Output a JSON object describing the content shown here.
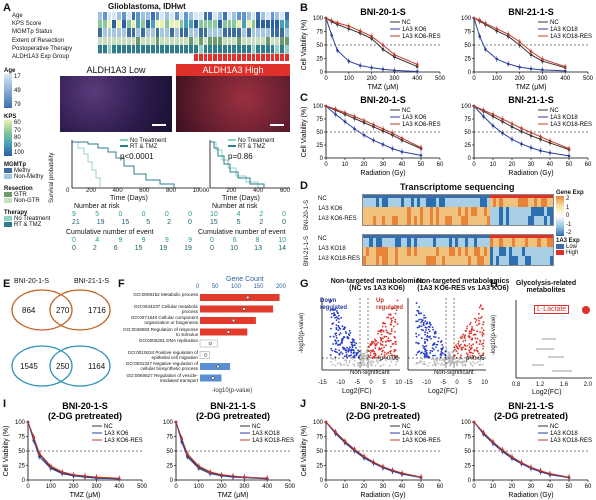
{
  "panels": {
    "A": {
      "label": "A",
      "title": "Glioblastoma, IDHwt",
      "track_labels": [
        "Age",
        "KPS Score",
        "MGMTp Status",
        "Extent of Resection",
        "Postoperative Therapy",
        "ALDH1A3 Exp Group"
      ],
      "legend": {
        "age_title": "Age",
        "age_ticks": [
          "17",
          "49",
          "79"
        ],
        "kps_title": "KPS",
        "kps_ticks": [
          "60",
          "70",
          "80",
          "90",
          "100"
        ],
        "mgmt_title": "MGMTp",
        "mgmt_items": [
          "Methy",
          "Non-Methy"
        ],
        "resection_title": "Resection",
        "resection_items": [
          "GTR",
          "Non-GTR"
        ],
        "therapy_title": "Therapy",
        "therapy_items": [
          "No Treatment",
          "RT & TMZ"
        ],
        "colors": {
          "methy": "#3b6e9e",
          "nonmethy": "#a7c7e0",
          "gtr": "#6b9c6b",
          "nongtr": "#c9e0c0",
          "notreat": "#8fd1c8",
          "rttmz": "#2e7d8f",
          "low": "#ffffff",
          "high": "#e0302a"
        }
      },
      "img_low_label": "ALDH1A3 Low",
      "img_high_label": "ALDH1A3 High",
      "km_left": {
        "legend": [
          "No Treatment",
          "RT & TMZ"
        ],
        "pvalue": "p<0.0001",
        "ylabel": "Survival probability",
        "xlabel": "Time (Days)",
        "xticks": [
          "0",
          "200",
          "400",
          "600",
          "800",
          "1000"
        ],
        "risk_title": "Number at risk",
        "risk_rows": [
          [
            "9",
            "5",
            "0",
            "0",
            "0",
            "0"
          ],
          [
            "21",
            "19",
            "15",
            "5",
            "2",
            "0"
          ]
        ],
        "event_title": "Cumulative number of event",
        "event_rows": [
          [
            "0",
            "4",
            "9",
            "9",
            "9",
            "9"
          ],
          [
            "0",
            "2",
            "6",
            "15",
            "19",
            "19"
          ]
        ]
      },
      "km_right": {
        "legend": [
          "No Treatment",
          "RT & TMZ"
        ],
        "pvalue": "p=0.86",
        "xlabel": "Time (Days)",
        "xticks": [
          "0",
          "200",
          "400",
          "600"
        ],
        "risk_title": "Number at risk",
        "risk_rows": [
          [
            "10",
            "4",
            "2",
            "0"
          ],
          [
            "15",
            "5",
            "2",
            "0"
          ]
        ],
        "event_title": "Cumulative number of event",
        "event_rows": [
          [
            "0",
            "6",
            "8",
            "10"
          ],
          [
            "0",
            "10",
            "13",
            "14"
          ]
        ]
      }
    },
    "B": {
      "label": "B"
    },
    "C": {
      "label": "C"
    },
    "D": {
      "label": "D",
      "title": "Transcriptome sequencing",
      "rows_top": [
        "NC",
        "1A3 KO6",
        "1A3 KO6-RES"
      ],
      "rows_bottom": [
        "NC",
        "1A3 KO18",
        "1A3 KO18-RES"
      ],
      "side_top": "BNI-20-1-S",
      "side_bottom": "BNI-21-1-S",
      "legend_title": "Gene Exp",
      "legend_ticks": [
        "2",
        "1",
        "0",
        "-1",
        "-2"
      ],
      "exp_title": "1A3 Exp",
      "exp_items": [
        "Low",
        "High"
      ]
    },
    "E": {
      "label": "E",
      "venn1": {
        "left": "BNI-20-1-S",
        "right": "BNI-21-1-S",
        "values": [
          "864",
          "270",
          "1716"
        ]
      },
      "venn2": {
        "values": [
          "1545",
          "250",
          "1164"
        ]
      }
    },
    "F": {
      "label": "F",
      "axis_title": "Gene Count",
      "axis_ticks": [
        "0",
        "50",
        "100",
        "150",
        "200"
      ],
      "terms": [
        "GO:0008152 Metabolic process",
        "GO:0044237 Cellular metabolic process",
        "GO:0071840 Cellular component organization or biogenesis",
        "GO:0048583 Regulation of response to stimulus",
        "GO:0006281 DNA replication",
        "GO:0010634 Positive regulation of epithelial cell migration",
        "GO:0031327 Negative regulation of cellular biosynthetic process",
        "GO:0060627 Regulation of vesicle-mediated transport"
      ],
      "bottom_label": "-log10(p-value)"
    },
    "G": {
      "label": "G",
      "left_title": [
        "Non-targeted metabolomics",
        "(NC vs 1A3 KO6)"
      ],
      "right_title": [
        "Non-targeted metabolomics",
        "(1A3 KO6-RES vs 1A3 KO6)"
      ],
      "down": [
        "Down",
        "regulated"
      ],
      "up": [
        "Up",
        "regulated"
      ],
      "p_label": "p=0.05",
      "nonsig": "Non-significant",
      "ylabel": "-log10(p-value)",
      "xlabel": "Log2(FC)",
      "xticks": [
        "-15",
        "-10",
        "-5",
        "0",
        "5",
        "10"
      ],
      "yticks": [
        "0",
        "5",
        "10",
        "15"
      ]
    },
    "H": {
      "label": "H",
      "title": [
        "Glycolysis-related",
        "metabolites"
      ],
      "marker": "L-Lactate",
      "ylabel": "-log10(p-value)",
      "xlabel": "Log2(FC)",
      "xticks": [
        "0.8",
        "1.2",
        "1.6",
        "2.0"
      ]
    },
    "I": {
      "label": "I"
    },
    "J": {
      "label": "J"
    }
  },
  "chart_data": [
    {
      "id": "B1",
      "type": "line",
      "title": "BNI-20-1-S",
      "xlabel": "TMZ (μM)",
      "ylabel": "Cell Viability (%)",
      "xlim": [
        0,
        500
      ],
      "ylim": [
        0,
        100
      ],
      "xticks": [
        "0",
        "100",
        "200",
        "300",
        "400",
        "500"
      ],
      "yticks": [
        "0",
        "25",
        "50",
        "75",
        "100"
      ],
      "x": [
        0,
        25,
        50,
        100,
        150,
        200,
        250,
        300,
        400
      ],
      "series": [
        {
          "name": "NC",
          "values": [
            100,
            93,
            88,
            80,
            72,
            62,
            42,
            28,
            10
          ],
          "color": "#333333"
        },
        {
          "name": "1A3 KO6",
          "values": [
            100,
            68,
            40,
            20,
            12,
            8,
            5,
            3,
            1
          ],
          "color": "#2b3f9e"
        },
        {
          "name": "1A3 KO6-RES",
          "values": [
            100,
            95,
            91,
            85,
            76,
            66,
            50,
            32,
            14
          ],
          "color": "#c0392b"
        }
      ]
    },
    {
      "id": "B2",
      "type": "line",
      "title": "BNI-21-1-S",
      "xlabel": "TMZ (μM)",
      "ylabel": "",
      "xlim": [
        0,
        500
      ],
      "ylim": [
        0,
        100
      ],
      "xticks": [
        "0",
        "100",
        "200",
        "300",
        "400",
        "500"
      ],
      "yticks": [
        "0",
        "25",
        "50",
        "75",
        "100"
      ],
      "x": [
        0,
        25,
        50,
        100,
        150,
        200,
        250,
        300,
        400
      ],
      "series": [
        {
          "name": "NC",
          "values": [
            100,
            94,
            88,
            76,
            66,
            50,
            32,
            20,
            8
          ],
          "color": "#333333"
        },
        {
          "name": "1A3 KO18",
          "values": [
            100,
            66,
            42,
            24,
            15,
            9,
            6,
            4,
            2
          ],
          "color": "#2b3f9e"
        },
        {
          "name": "1A3 KO18-RES",
          "values": [
            100,
            96,
            90,
            80,
            70,
            56,
            38,
            24,
            10
          ],
          "color": "#c0392b"
        }
      ]
    },
    {
      "id": "C1",
      "type": "line",
      "title": "BNI-20-1-S",
      "xlabel": "Radiation (Gy)",
      "ylabel": "Cell Viability (%)",
      "xlim": [
        0,
        60
      ],
      "ylim": [
        0,
        100
      ],
      "xticks": [
        "0",
        "10",
        "20",
        "30",
        "40",
        "50",
        "60"
      ],
      "yticks": [
        "0",
        "25",
        "50",
        "75",
        "100"
      ],
      "x": [
        0,
        5,
        10,
        15,
        20,
        25,
        30,
        35,
        40,
        50
      ],
      "series": [
        {
          "name": "NC",
          "values": [
            100,
            92,
            84,
            76,
            68,
            60,
            52,
            44,
            34,
            18
          ],
          "color": "#333333"
        },
        {
          "name": "1A3 KO6",
          "values": [
            100,
            84,
            70,
            56,
            44,
            34,
            26,
            18,
            12,
            5
          ],
          "color": "#2b3f9e"
        },
        {
          "name": "1A3 KO6-RES",
          "values": [
            100,
            94,
            87,
            80,
            72,
            64,
            56,
            48,
            38,
            20
          ],
          "color": "#c0392b"
        }
      ]
    },
    {
      "id": "C2",
      "type": "line",
      "title": "BNI-21-1-S",
      "xlabel": "Radiation (Gy)",
      "ylabel": "",
      "xlim": [
        0,
        60
      ],
      "ylim": [
        0,
        100
      ],
      "xticks": [
        "0",
        "10",
        "20",
        "30",
        "40",
        "50",
        "60"
      ],
      "yticks": [
        "0",
        "25",
        "50",
        "75",
        "100"
      ],
      "x": [
        0,
        5,
        10,
        15,
        20,
        25,
        30,
        35,
        40,
        50
      ],
      "series": [
        {
          "name": "NC",
          "values": [
            100,
            90,
            80,
            70,
            60,
            51,
            43,
            36,
            29,
            16
          ],
          "color": "#333333"
        },
        {
          "name": "1A3 KO18",
          "values": [
            100,
            80,
            62,
            48,
            36,
            27,
            20,
            14,
            10,
            4
          ],
          "color": "#2b3f9e"
        },
        {
          "name": "1A3 KO18-RES",
          "values": [
            100,
            92,
            84,
            75,
            66,
            57,
            49,
            41,
            33,
            18
          ],
          "color": "#c0392b"
        }
      ]
    },
    {
      "id": "I1",
      "type": "line",
      "title": "BNI-20-1-S",
      "subtitle": "(2-DG pretreated)",
      "xlabel": "TMZ (μM)",
      "ylabel": "Cell Viability (%)",
      "xlim": [
        0,
        500
      ],
      "ylim": [
        0,
        100
      ],
      "xticks": [
        "0",
        "100",
        "200",
        "300",
        "400",
        "500"
      ],
      "yticks": [
        "0",
        "25",
        "50",
        "75",
        "100"
      ],
      "x": [
        0,
        25,
        50,
        100,
        150,
        200,
        250,
        300,
        400
      ],
      "series": [
        {
          "name": "NC",
          "values": [
            100,
            72,
            44,
            22,
            12,
            8,
            6,
            4,
            2
          ],
          "color": "#333333"
        },
        {
          "name": "1A3 KO6",
          "values": [
            100,
            68,
            40,
            20,
            11,
            7,
            5,
            3,
            2
          ],
          "color": "#2b3f9e"
        },
        {
          "name": "1A3 KO6-RES",
          "values": [
            100,
            74,
            46,
            24,
            14,
            9,
            7,
            5,
            3
          ],
          "color": "#c0392b"
        }
      ]
    },
    {
      "id": "I2",
      "type": "line",
      "title": "BNI-21-1-S",
      "subtitle": "(2-DG pretreated)",
      "xlabel": "TMZ (μM)",
      "ylabel": "",
      "xlim": [
        0,
        500
      ],
      "ylim": [
        0,
        100
      ],
      "xticks": [
        "0",
        "100",
        "200",
        "300",
        "400",
        "500"
      ],
      "yticks": [
        "0",
        "25",
        "50",
        "75",
        "100"
      ],
      "x": [
        0,
        25,
        50,
        100,
        150,
        200,
        250,
        300,
        400
      ],
      "series": [
        {
          "name": "NC",
          "values": [
            100,
            70,
            42,
            22,
            13,
            8,
            6,
            5,
            3
          ],
          "color": "#333333"
        },
        {
          "name": "1A3 KO18",
          "values": [
            100,
            66,
            40,
            20,
            11,
            7,
            5,
            4,
            2
          ],
          "color": "#2b3f9e"
        },
        {
          "name": "1A3 KO18-RES",
          "values": [
            100,
            72,
            45,
            24,
            14,
            9,
            7,
            5,
            3
          ],
          "color": "#c0392b"
        }
      ]
    },
    {
      "id": "J1",
      "type": "line",
      "title": "BNI-20-1-S",
      "subtitle": "(2-DG pretreated)",
      "xlabel": "Radiation (Gy)",
      "ylabel": "Cell Viability (%)",
      "xlim": [
        0,
        60
      ],
      "ylim": [
        0,
        100
      ],
      "xticks": [
        "0",
        "10",
        "20",
        "30",
        "40",
        "50",
        "60"
      ],
      "yticks": [
        "0",
        "25",
        "50",
        "75",
        "100"
      ],
      "x": [
        0,
        5,
        10,
        15,
        20,
        25,
        30,
        35,
        40,
        50
      ],
      "series": [
        {
          "name": "NC",
          "values": [
            100,
            82,
            66,
            52,
            40,
            30,
            22,
            16,
            11,
            5
          ],
          "color": "#333333"
        },
        {
          "name": "1A3 KO6",
          "values": [
            100,
            80,
            64,
            50,
            38,
            29,
            21,
            15,
            10,
            4
          ],
          "color": "#2b3f9e"
        },
        {
          "name": "1A3 KO6-RES",
          "values": [
            100,
            83,
            67,
            53,
            41,
            31,
            23,
            17,
            12,
            5
          ],
          "color": "#c0392b"
        }
      ]
    },
    {
      "id": "J2",
      "type": "line",
      "title": "BNI-21-1-S",
      "subtitle": "(2-DG pretreated)",
      "xlabel": "Radiation (Gy)",
      "ylabel": "",
      "xlim": [
        0,
        60
      ],
      "ylim": [
        0,
        100
      ],
      "xticks": [
        "0",
        "10",
        "20",
        "30",
        "40",
        "50",
        "60"
      ],
      "yticks": [
        "0",
        "25",
        "50",
        "75",
        "100"
      ],
      "x": [
        0,
        5,
        10,
        15,
        20,
        25,
        30,
        35,
        40,
        50
      ],
      "series": [
        {
          "name": "NC",
          "values": [
            100,
            81,
            65,
            51,
            39,
            29,
            21,
            15,
            10,
            4
          ],
          "color": "#333333"
        },
        {
          "name": "1A3 KO18",
          "values": [
            100,
            79,
            63,
            49,
            37,
            28,
            20,
            14,
            9,
            4
          ],
          "color": "#2b3f9e"
        },
        {
          "name": "1A3 KO18-RES",
          "values": [
            100,
            82,
            66,
            52,
            40,
            30,
            22,
            16,
            11,
            5
          ],
          "color": "#c0392b"
        }
      ]
    },
    {
      "id": "F",
      "type": "bar",
      "title": "",
      "xlabel": "Gene Count",
      "xlim": [
        0,
        200
      ],
      "categories": [
        "GO:0008152",
        "GO:0044237",
        "GO:0071840",
        "GO:0048583",
        "GO:0006281",
        "GO:0010634",
        "GO:0031327",
        "GO:0060627"
      ],
      "values": [
        185,
        170,
        130,
        110,
        40,
        22,
        70,
        50
      ]
    }
  ]
}
